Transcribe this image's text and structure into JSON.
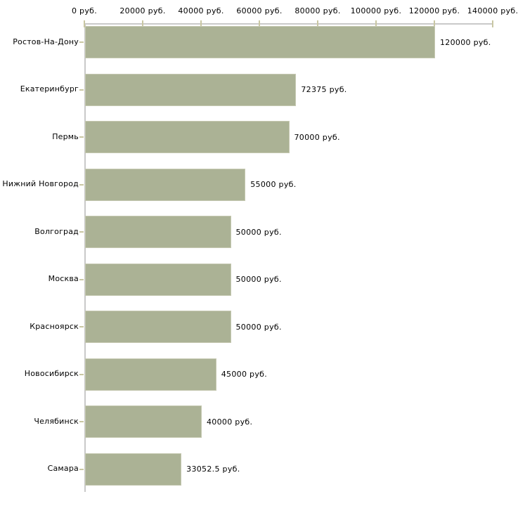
{
  "chart_data": {
    "type": "bar",
    "orientation": "horizontal",
    "title": "",
    "xlabel": "",
    "ylabel": "",
    "currency_suffix": "руб.",
    "categories": [
      "Ростов-На-Дону",
      "Екатеринбург",
      "Пермь",
      "Нижний Новгород",
      "Волгоград",
      "Москва",
      "Красноярск",
      "Новосибирск",
      "Челябинск",
      "Самара"
    ],
    "values": [
      120000,
      72375,
      70000,
      55000,
      50000,
      50000,
      50000,
      45000,
      40000,
      33052.5
    ],
    "value_labels": [
      "120000 руб.",
      "72375 руб.",
      "70000 руб.",
      "55000 руб.",
      "50000 руб.",
      "50000 руб.",
      "50000 руб.",
      "45000 руб.",
      "40000 руб.",
      "33052.5 руб."
    ],
    "x_tick_values": [
      0,
      20000,
      40000,
      60000,
      80000,
      100000,
      120000,
      140000
    ],
    "x_tick_labels": [
      "0 руб.",
      "20000 руб.",
      "40000 руб.",
      "60000 руб.",
      "80000 руб.",
      "100000 руб.",
      "120000 руб.",
      "140000 руб."
    ],
    "xlim": [
      0,
      140000
    ],
    "grid": false,
    "legend": false,
    "colors": {
      "bar_fill": "#abb295",
      "bar_border": "#c6c9b2",
      "axis_line": "#c9c9c9",
      "tick_mark": "#c9c7a3",
      "text": "#000000",
      "background": "#ffffff"
    }
  }
}
